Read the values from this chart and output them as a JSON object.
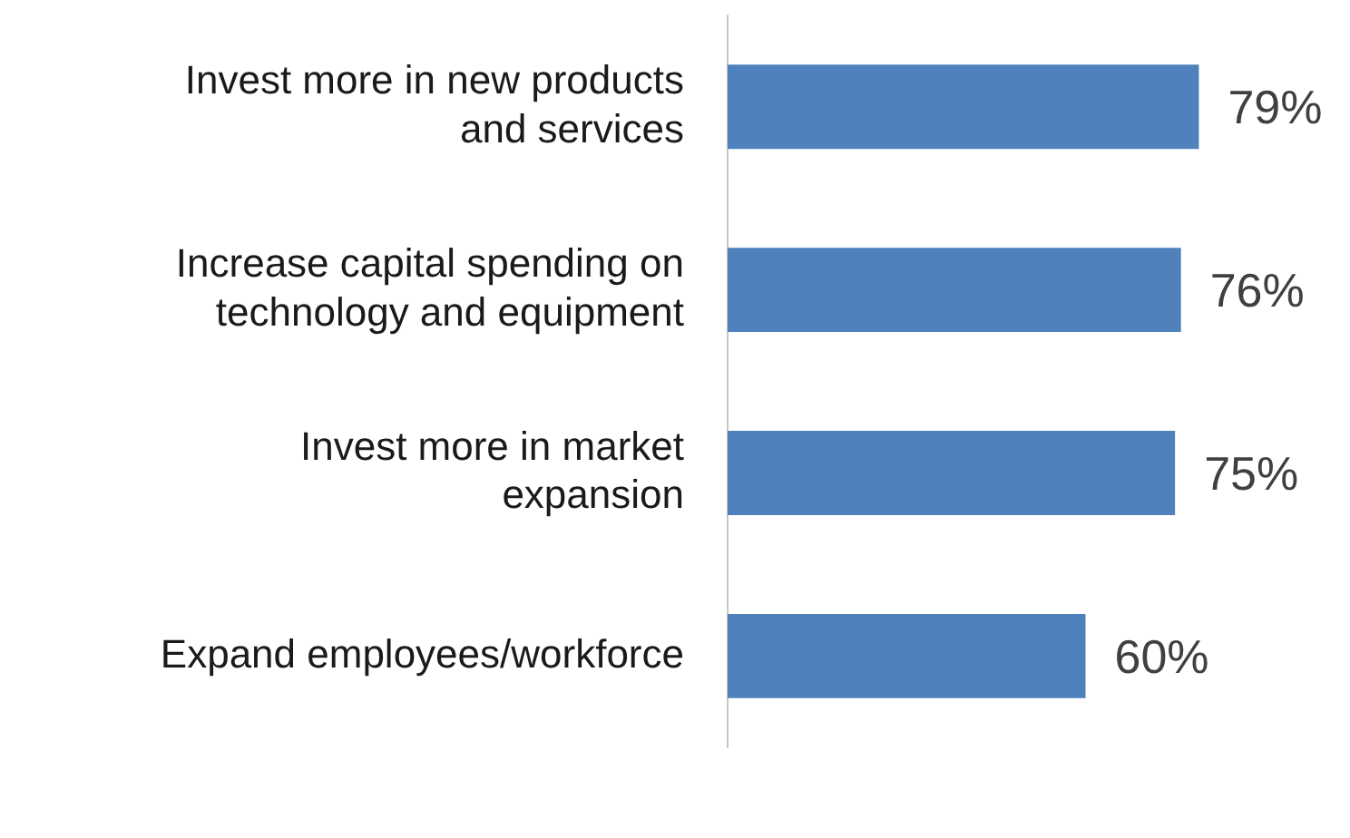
{
  "chart_data": {
    "type": "bar",
    "orientation": "horizontal",
    "categories": [
      "Invest more in new products\nand services",
      "Increase capital spending on\ntechnology and equipment",
      "Invest more in market\nexpansion",
      "Expand employees/workforce"
    ],
    "values": [
      79,
      76,
      75,
      60
    ],
    "value_labels": [
      "79%",
      "76%",
      "75%",
      "60%"
    ],
    "color": "#4f81bd",
    "tick_labels": "y"
  }
}
